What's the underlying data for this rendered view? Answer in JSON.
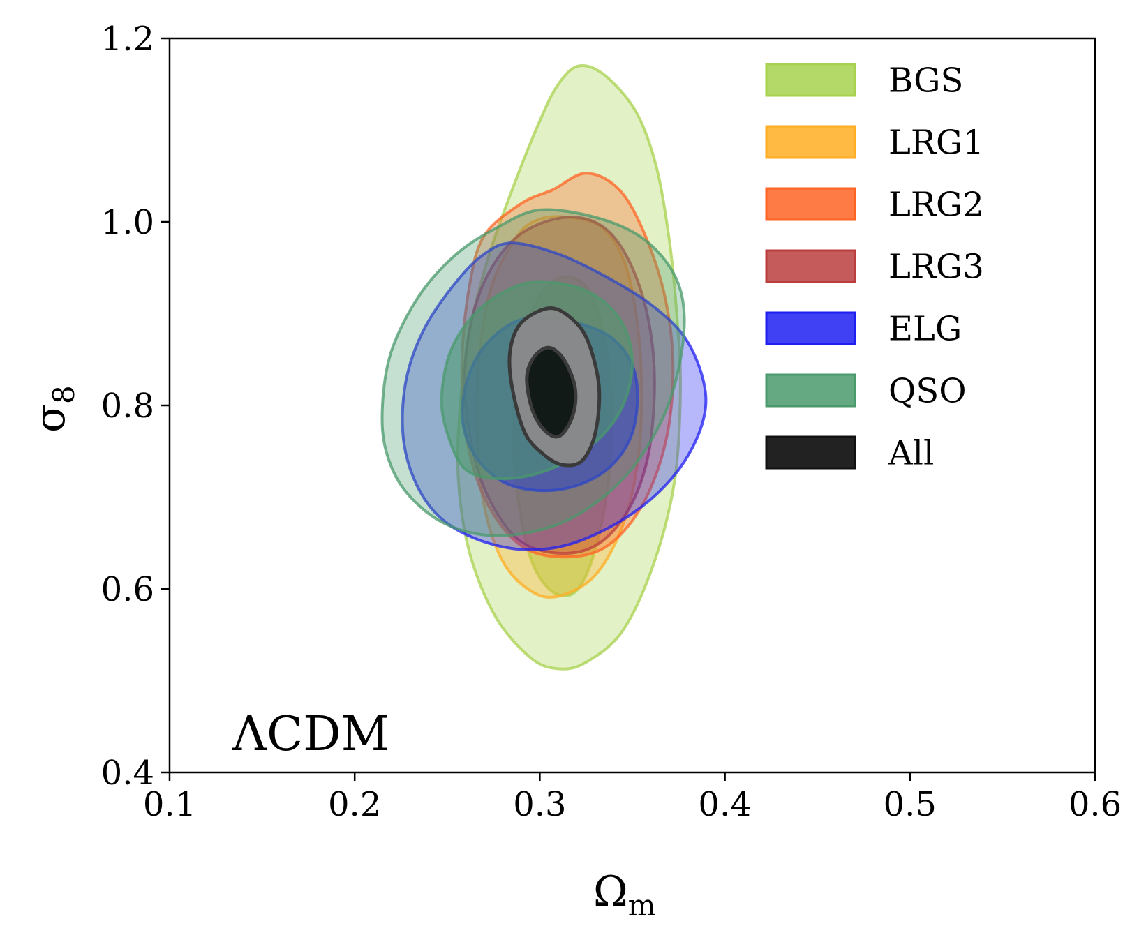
{
  "chart_data": {
    "type": "contour",
    "title": "",
    "xlabel": "Ω",
    "xlabel_sub": "m",
    "ylabel": "σ",
    "ylabel_sub": "8",
    "xlim": [
      0.1,
      0.6
    ],
    "ylim": [
      0.4,
      1.2
    ],
    "xticks": [
      0.1,
      0.2,
      0.3,
      0.4,
      0.5,
      0.6
    ],
    "xtick_labels": [
      "0.1",
      "0.2",
      "0.3",
      "0.4",
      "0.5",
      "0.6"
    ],
    "yticks": [
      0.4,
      0.6,
      0.8,
      1.0,
      1.2
    ],
    "ytick_labels": [
      "0.4",
      "0.6",
      "0.8",
      "1.0",
      "1.2"
    ],
    "annotation": "ΛCDM",
    "legend_position": "top-right",
    "series": [
      {
        "name": "BGS",
        "color": "#a8d24e",
        "contours": [
          [
            [
              0.321,
              1.17
            ],
            [
              0.335,
              1.16
            ],
            [
              0.352,
              1.12
            ],
            [
              0.363,
              1.06
            ],
            [
              0.37,
              0.98
            ],
            [
              0.374,
              0.9
            ],
            [
              0.376,
              0.82
            ],
            [
              0.373,
              0.72
            ],
            [
              0.362,
              0.63
            ],
            [
              0.345,
              0.555
            ],
            [
              0.325,
              0.52
            ],
            [
              0.31,
              0.513
            ],
            [
              0.295,
              0.525
            ],
            [
              0.276,
              0.57
            ],
            [
              0.262,
              0.64
            ],
            [
              0.256,
              0.72
            ],
            [
              0.257,
              0.8
            ],
            [
              0.262,
              0.88
            ],
            [
              0.272,
              0.96
            ],
            [
              0.286,
              1.04
            ],
            [
              0.3,
              1.11
            ],
            [
              0.31,
              1.15
            ]
          ],
          [
            [
              0.316,
              0.94
            ],
            [
              0.328,
              0.92
            ],
            [
              0.336,
              0.86
            ],
            [
              0.339,
              0.78
            ],
            [
              0.336,
              0.7
            ],
            [
              0.328,
              0.63
            ],
            [
              0.318,
              0.595
            ],
            [
              0.305,
              0.6
            ],
            [
              0.294,
              0.64
            ],
            [
              0.287,
              0.72
            ],
            [
              0.286,
              0.8
            ],
            [
              0.29,
              0.87
            ],
            [
              0.302,
              0.925
            ]
          ]
        ]
      },
      {
        "name": "LRG1",
        "color": "#ffae23",
        "contours": [
          [
            [
              0.315,
              1.005
            ],
            [
              0.333,
              0.995
            ],
            [
              0.345,
              0.96
            ],
            [
              0.352,
              0.9
            ],
            [
              0.355,
              0.82
            ],
            [
              0.353,
              0.74
            ],
            [
              0.345,
              0.67
            ],
            [
              0.33,
              0.615
            ],
            [
              0.31,
              0.592
            ],
            [
              0.295,
              0.598
            ],
            [
              0.28,
              0.63
            ],
            [
              0.27,
              0.69
            ],
            [
              0.266,
              0.77
            ],
            [
              0.267,
              0.85
            ],
            [
              0.274,
              0.93
            ],
            [
              0.288,
              0.985
            ],
            [
              0.3,
              1.003
            ]
          ]
        ]
      },
      {
        "name": "LRG2",
        "color": "#ff6424",
        "contours": [
          [
            [
              0.325,
              1.053
            ],
            [
              0.343,
              1.035
            ],
            [
              0.357,
              0.985
            ],
            [
              0.368,
              0.915
            ],
            [
              0.372,
              0.84
            ],
            [
              0.368,
              0.76
            ],
            [
              0.355,
              0.69
            ],
            [
              0.335,
              0.645
            ],
            [
              0.31,
              0.635
            ],
            [
              0.288,
              0.65
            ],
            [
              0.27,
              0.7
            ],
            [
              0.26,
              0.77
            ],
            [
              0.258,
              0.85
            ],
            [
              0.262,
              0.93
            ],
            [
              0.27,
              0.985
            ],
            [
              0.29,
              1.02
            ],
            [
              0.307,
              1.035
            ]
          ]
        ]
      },
      {
        "name": "LRG3",
        "color": "#bb3e3e",
        "contours": [
          [
            [
              0.32,
              1.005
            ],
            [
              0.337,
              0.99
            ],
            [
              0.35,
              0.95
            ],
            [
              0.359,
              0.89
            ],
            [
              0.362,
              0.82
            ],
            [
              0.358,
              0.74
            ],
            [
              0.346,
              0.68
            ],
            [
              0.328,
              0.645
            ],
            [
              0.305,
              0.64
            ],
            [
              0.285,
              0.66
            ],
            [
              0.268,
              0.72
            ],
            [
              0.26,
              0.8
            ],
            [
              0.261,
              0.87
            ],
            [
              0.269,
              0.93
            ],
            [
              0.283,
              0.975
            ],
            [
              0.3,
              0.998
            ]
          ]
        ]
      },
      {
        "name": "ELG",
        "color": "#1f1ff2",
        "contours": [
          [
            [
              0.285,
              0.977
            ],
            [
              0.31,
              0.965
            ],
            [
              0.336,
              0.94
            ],
            [
              0.36,
              0.91
            ],
            [
              0.378,
              0.875
            ],
            [
              0.388,
              0.83
            ],
            [
              0.389,
              0.79
            ],
            [
              0.38,
              0.745
            ],
            [
              0.364,
              0.705
            ],
            [
              0.342,
              0.672
            ],
            [
              0.315,
              0.648
            ],
            [
              0.29,
              0.643
            ],
            [
              0.265,
              0.655
            ],
            [
              0.245,
              0.68
            ],
            [
              0.232,
              0.72
            ],
            [
              0.226,
              0.77
            ],
            [
              0.228,
              0.83
            ],
            [
              0.238,
              0.885
            ],
            [
              0.255,
              0.935
            ],
            [
              0.27,
              0.965
            ]
          ],
          [
            [
              0.293,
              0.895
            ],
            [
              0.32,
              0.89
            ],
            [
              0.341,
              0.87
            ],
            [
              0.352,
              0.83
            ],
            [
              0.35,
              0.77
            ],
            [
              0.335,
              0.728
            ],
            [
              0.31,
              0.708
            ],
            [
              0.283,
              0.714
            ],
            [
              0.265,
              0.745
            ],
            [
              0.258,
              0.79
            ],
            [
              0.263,
              0.84
            ],
            [
              0.275,
              0.875
            ]
          ]
        ]
      },
      {
        "name": "QSO",
        "color": "#4a9a6c",
        "contours": [
          [
            [
              0.3,
              1.013
            ],
            [
              0.33,
              1.005
            ],
            [
              0.355,
              0.983
            ],
            [
              0.372,
              0.945
            ],
            [
              0.378,
              0.9
            ],
            [
              0.375,
              0.84
            ],
            [
              0.365,
              0.78
            ],
            [
              0.345,
              0.72
            ],
            [
              0.315,
              0.675
            ],
            [
              0.28,
              0.658
            ],
            [
              0.25,
              0.67
            ],
            [
              0.228,
              0.705
            ],
            [
              0.217,
              0.75
            ],
            [
              0.215,
              0.8
            ],
            [
              0.22,
              0.86
            ],
            [
              0.235,
              0.92
            ],
            [
              0.255,
              0.965
            ],
            [
              0.278,
              0.995
            ]
          ],
          [
            [
              0.3,
              0.935
            ],
            [
              0.325,
              0.925
            ],
            [
              0.343,
              0.895
            ],
            [
              0.35,
              0.85
            ],
            [
              0.345,
              0.8
            ],
            [
              0.33,
              0.76
            ],
            [
              0.305,
              0.73
            ],
            [
              0.28,
              0.72
            ],
            [
              0.26,
              0.73
            ],
            [
              0.25,
              0.77
            ],
            [
              0.247,
              0.81
            ],
            [
              0.252,
              0.86
            ],
            [
              0.265,
              0.9
            ],
            [
              0.282,
              0.925
            ]
          ]
        ]
      },
      {
        "name": "All",
        "color": "#222222",
        "contours": [
          [
            [
              0.305,
              0.906
            ],
            [
              0.317,
              0.895
            ],
            [
              0.326,
              0.87
            ],
            [
              0.332,
              0.82
            ],
            [
              0.33,
              0.77
            ],
            [
              0.323,
              0.74
            ],
            [
              0.313,
              0.735
            ],
            [
              0.303,
              0.745
            ],
            [
              0.292,
              0.77
            ],
            [
              0.285,
              0.82
            ],
            [
              0.284,
              0.86
            ],
            [
              0.29,
              0.89
            ]
          ],
          [
            [
              0.305,
              0.863
            ],
            [
              0.313,
              0.85
            ],
            [
              0.319,
              0.82
            ],
            [
              0.318,
              0.79
            ],
            [
              0.311,
              0.767
            ],
            [
              0.303,
              0.772
            ],
            [
              0.296,
              0.795
            ],
            [
              0.293,
              0.83
            ],
            [
              0.297,
              0.853
            ]
          ]
        ]
      }
    ]
  }
}
